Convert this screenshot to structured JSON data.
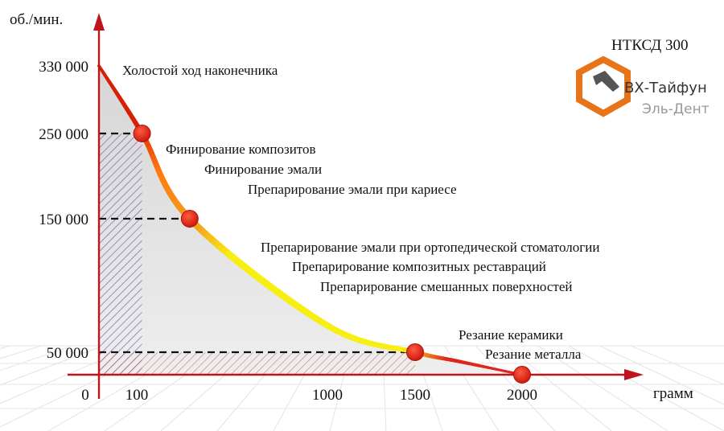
{
  "chart_data": {
    "type": "line",
    "title": "НТКСД 300",
    "xlabel": "грамм",
    "ylabel": "об./мин.",
    "xlim": [
      0,
      2400
    ],
    "ylim": [
      0,
      360000
    ],
    "x_ticks": [
      {
        "value": 0,
        "label": "0"
      },
      {
        "value": 100,
        "label": "100"
      },
      {
        "value": 1000,
        "label": "1000"
      },
      {
        "value": 1500,
        "label": "1500"
      },
      {
        "value": 2000,
        "label": "2000"
      }
    ],
    "y_ticks": [
      {
        "value": 50000,
        "label": "50 000"
      },
      {
        "value": 150000,
        "label": "150 000"
      },
      {
        "value": 250000,
        "label": "250 000"
      },
      {
        "value": 330000,
        "label": "330 000"
      }
    ],
    "points": [
      {
        "x": 0,
        "y": 330000
      },
      {
        "x": 125,
        "y": 250000
      },
      {
        "x": 350,
        "y": 150000
      },
      {
        "x": 1000,
        "y": 70000
      },
      {
        "x": 1500,
        "y": 50000
      },
      {
        "x": 1700,
        "y": 30000
      },
      {
        "x": 2000,
        "y": 0
      }
    ],
    "markers": [
      {
        "x": 125,
        "y": 250000
      },
      {
        "x": 350,
        "y": 150000
      },
      {
        "x": 1500,
        "y": 50000
      },
      {
        "x": 2000,
        "y": 0
      }
    ],
    "annotations": [
      {
        "text": "Холостой ход наконечника"
      },
      {
        "text": "Финирование композитов"
      },
      {
        "text": "Финирование эмали"
      },
      {
        "text": "Препарирование эмали при кариесе"
      },
      {
        "text": "Препарирование эмали при ортопедической стоматологии"
      },
      {
        "text": "Препарирование композитных реставраций"
      },
      {
        "text": "Препарирование смешанных поверхностей"
      },
      {
        "text": "Резание керамики"
      },
      {
        "text": "Резание металла"
      }
    ],
    "colors": {
      "start": "#d81e05",
      "mid": "#f4a21c",
      "high_band": "#ff7a10",
      "yellow": "#f7ee12",
      "end": "#e0261c",
      "marker": "#e3241c",
      "hatch_blue": "#6a4ab0",
      "hatch_red": "#c84040"
    },
    "grid": false,
    "legend": "none"
  },
  "brand": {
    "line1": "ВХ-Тайфун",
    "line2": "Эль-Дент"
  }
}
